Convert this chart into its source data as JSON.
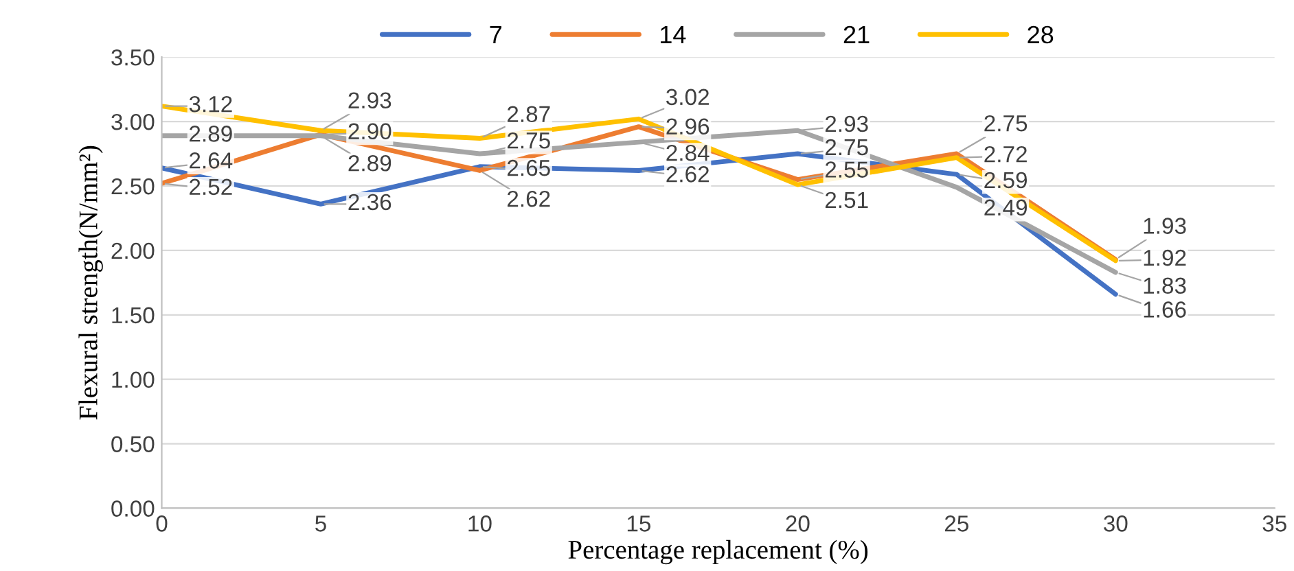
{
  "chart_data": {
    "type": "line",
    "xlabel": "Percentage replacement (%)",
    "ylabel": "Flexural strength(N/mm²)",
    "x": [
      0,
      5,
      10,
      15,
      20,
      25,
      30
    ],
    "series": [
      {
        "name": "7",
        "color": "#4472c4",
        "values": [
          2.64,
          2.36,
          2.65,
          2.62,
          2.75,
          2.59,
          1.66
        ],
        "value_labels": [
          "2.64",
          "2.36",
          "2.65",
          "2.62",
          "2.75",
          "2.59",
          "1.66"
        ]
      },
      {
        "name": "14",
        "color": "#ed7d31",
        "values": [
          2.52,
          2.9,
          2.62,
          2.96,
          2.55,
          2.75,
          1.93
        ],
        "value_labels": [
          "2.52",
          "2.90",
          "2.62",
          "2.96",
          "2.55",
          "2.75",
          "1.93"
        ]
      },
      {
        "name": "21",
        "color": "#a5a5a5",
        "values": [
          2.89,
          2.89,
          2.75,
          2.84,
          2.93,
          2.49,
          1.83
        ],
        "value_labels": [
          "2.89",
          "2.89",
          "2.75",
          "2.84",
          "2.93",
          "2.49",
          "1.83"
        ]
      },
      {
        "name": "28",
        "color": "#ffc000",
        "values": [
          3.12,
          2.93,
          2.87,
          3.02,
          2.51,
          2.72,
          1.92
        ],
        "value_labels": [
          "3.12",
          "2.93",
          "2.87",
          "3.02",
          "2.51",
          "2.72",
          "1.92"
        ]
      }
    ],
    "xlim": [
      0,
      35
    ],
    "xticks": [
      0,
      5,
      10,
      15,
      20,
      25,
      30,
      35
    ],
    "ylim": [
      0,
      3.5
    ],
    "yticks": [
      {
        "value": 0,
        "label": "0.00"
      },
      {
        "value": 0.5,
        "label": "0.50"
      },
      {
        "value": 1,
        "label": "1.00"
      },
      {
        "value": 1.5,
        "label": "1.50"
      },
      {
        "value": 2,
        "label": "2.00"
      },
      {
        "value": 2.5,
        "label": "2.50"
      },
      {
        "value": 3,
        "label": "3.00"
      },
      {
        "value": 3.5,
        "label": "3.50"
      }
    ],
    "grid": "y",
    "legend": "top",
    "marker": "none",
    "line_style": "solid"
  }
}
